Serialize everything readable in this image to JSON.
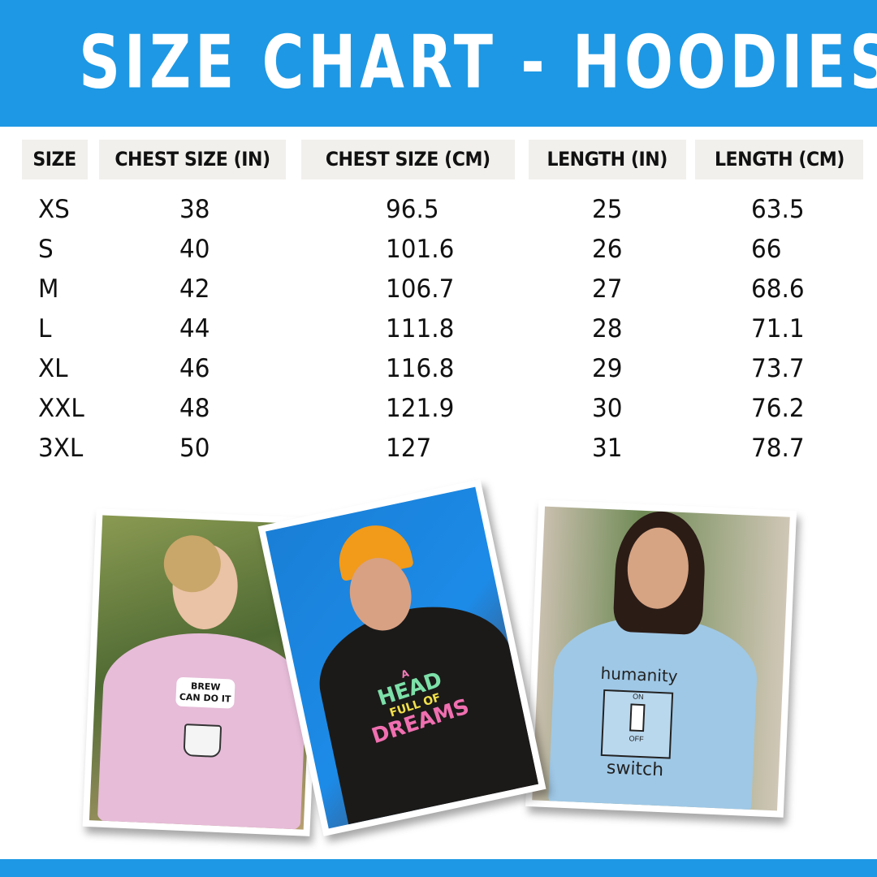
{
  "title": "SIZE CHART - HOODIES",
  "colors": {
    "brand_blue": "#1e98e4",
    "header_cell_bg": "#f1f0ec"
  },
  "table": {
    "headers": [
      "SIZE",
      "CHEST SIZE (IN)",
      "CHEST SIZE (CM)",
      "LENGTH (IN)",
      "LENGTH (CM)"
    ],
    "rows": [
      [
        "XS",
        "38",
        "96.5",
        "25",
        "63.5"
      ],
      [
        "S",
        "40",
        "101.6",
        "26",
        "66"
      ],
      [
        "M",
        "42",
        "106.7",
        "27",
        "68.6"
      ],
      [
        "L",
        "44",
        "111.8",
        "28",
        "71.1"
      ],
      [
        "XL",
        "46",
        "116.8",
        "29",
        "73.7"
      ],
      [
        "XXL",
        "48",
        "121.9",
        "30",
        "76.2"
      ],
      [
        "3XL",
        "50",
        "127",
        "31",
        "78.7"
      ]
    ]
  },
  "photos": [
    {
      "hoodie_color": "pink",
      "print_lines": [
        "BREW",
        "CAN DO IT"
      ]
    },
    {
      "hoodie_color": "black",
      "print_lines": [
        "A",
        "HEAD",
        "FULL OF",
        "DREAMS"
      ]
    },
    {
      "hoodie_color": "light-blue",
      "print_lines": [
        "humanity",
        "ON",
        "OFF",
        "switch"
      ]
    }
  ]
}
